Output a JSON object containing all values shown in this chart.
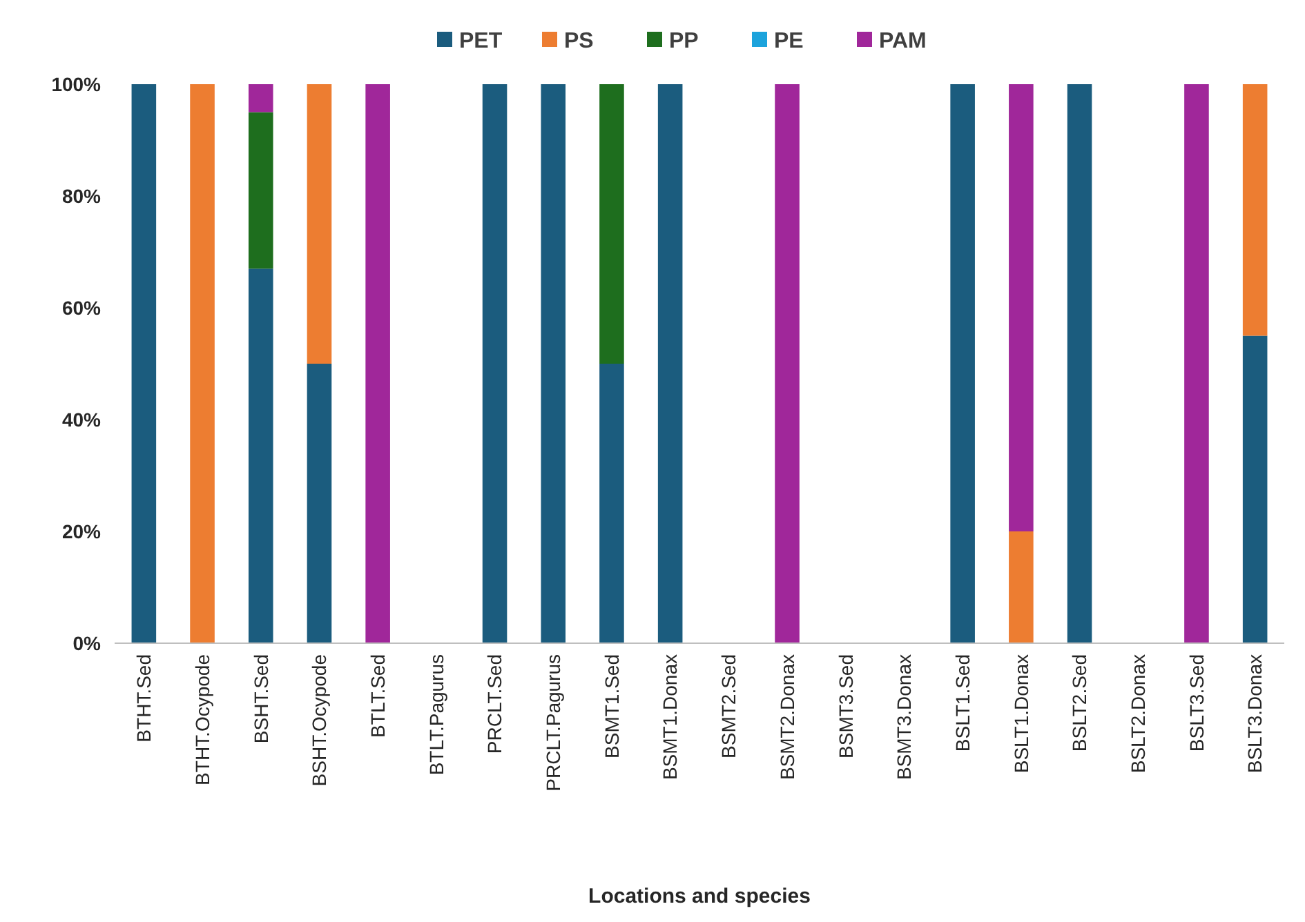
{
  "chart_data": {
    "type": "bar",
    "stacked": true,
    "xlabel": "Locations and species",
    "categories": [
      "BTHT.Sed",
      "BTHT.Ocypode",
      "BSHT.Sed",
      "BSHT.Ocypode",
      "BTLT.Sed",
      "BTLT.Pagurus",
      "PRCLT.Sed",
      "PRCLT.Pagurus",
      "BSMT1.Sed",
      "BSMT1.Donax",
      "BSMT2.Sed",
      "BSMT2.Donax",
      "BSMT3.Sed",
      "BSMT3.Donax",
      "BSLT1.Sed",
      "BSLT1.Donax",
      "BSLT2.Sed",
      "BSLT2.Donax",
      "BSLT3.Sed",
      "BSLT3.Donax"
    ],
    "series": [
      {
        "name": "PET",
        "color": "#1b5c7e",
        "values": [
          100,
          null,
          67,
          50,
          null,
          null,
          100,
          100,
          50,
          100,
          null,
          null,
          null,
          null,
          100,
          null,
          100,
          null,
          null,
          55
        ]
      },
      {
        "name": "PS",
        "color": "#ed7d31",
        "values": [
          null,
          100,
          null,
          50,
          null,
          null,
          null,
          null,
          null,
          null,
          null,
          null,
          null,
          null,
          null,
          20,
          null,
          null,
          null,
          45
        ]
      },
      {
        "name": "PP",
        "color": "#1e6e1e",
        "values": [
          null,
          null,
          28,
          null,
          null,
          null,
          null,
          null,
          50,
          null,
          null,
          null,
          null,
          null,
          null,
          null,
          null,
          null,
          null,
          null
        ]
      },
      {
        "name": "PE",
        "color": "#1ca3dc",
        "values": [
          null,
          null,
          null,
          null,
          null,
          null,
          null,
          null,
          null,
          null,
          null,
          null,
          null,
          null,
          null,
          null,
          null,
          null,
          null,
          null
        ]
      },
      {
        "name": "PAM",
        "color": "#a0279a",
        "values": [
          null,
          null,
          5,
          null,
          100,
          null,
          null,
          null,
          null,
          null,
          null,
          100,
          null,
          null,
          null,
          80,
          null,
          null,
          100,
          null
        ]
      }
    ],
    "ylim": [
      0,
      100
    ],
    "yticks": [
      {
        "value": 0,
        "label": "0%"
      },
      {
        "value": 20,
        "label": "20%"
      },
      {
        "value": 40,
        "label": "40%"
      },
      {
        "value": 60,
        "label": "60%"
      },
      {
        "value": 80,
        "label": "80%"
      },
      {
        "value": 100,
        "label": "100%"
      }
    ],
    "grid": false,
    "legend": "top"
  }
}
